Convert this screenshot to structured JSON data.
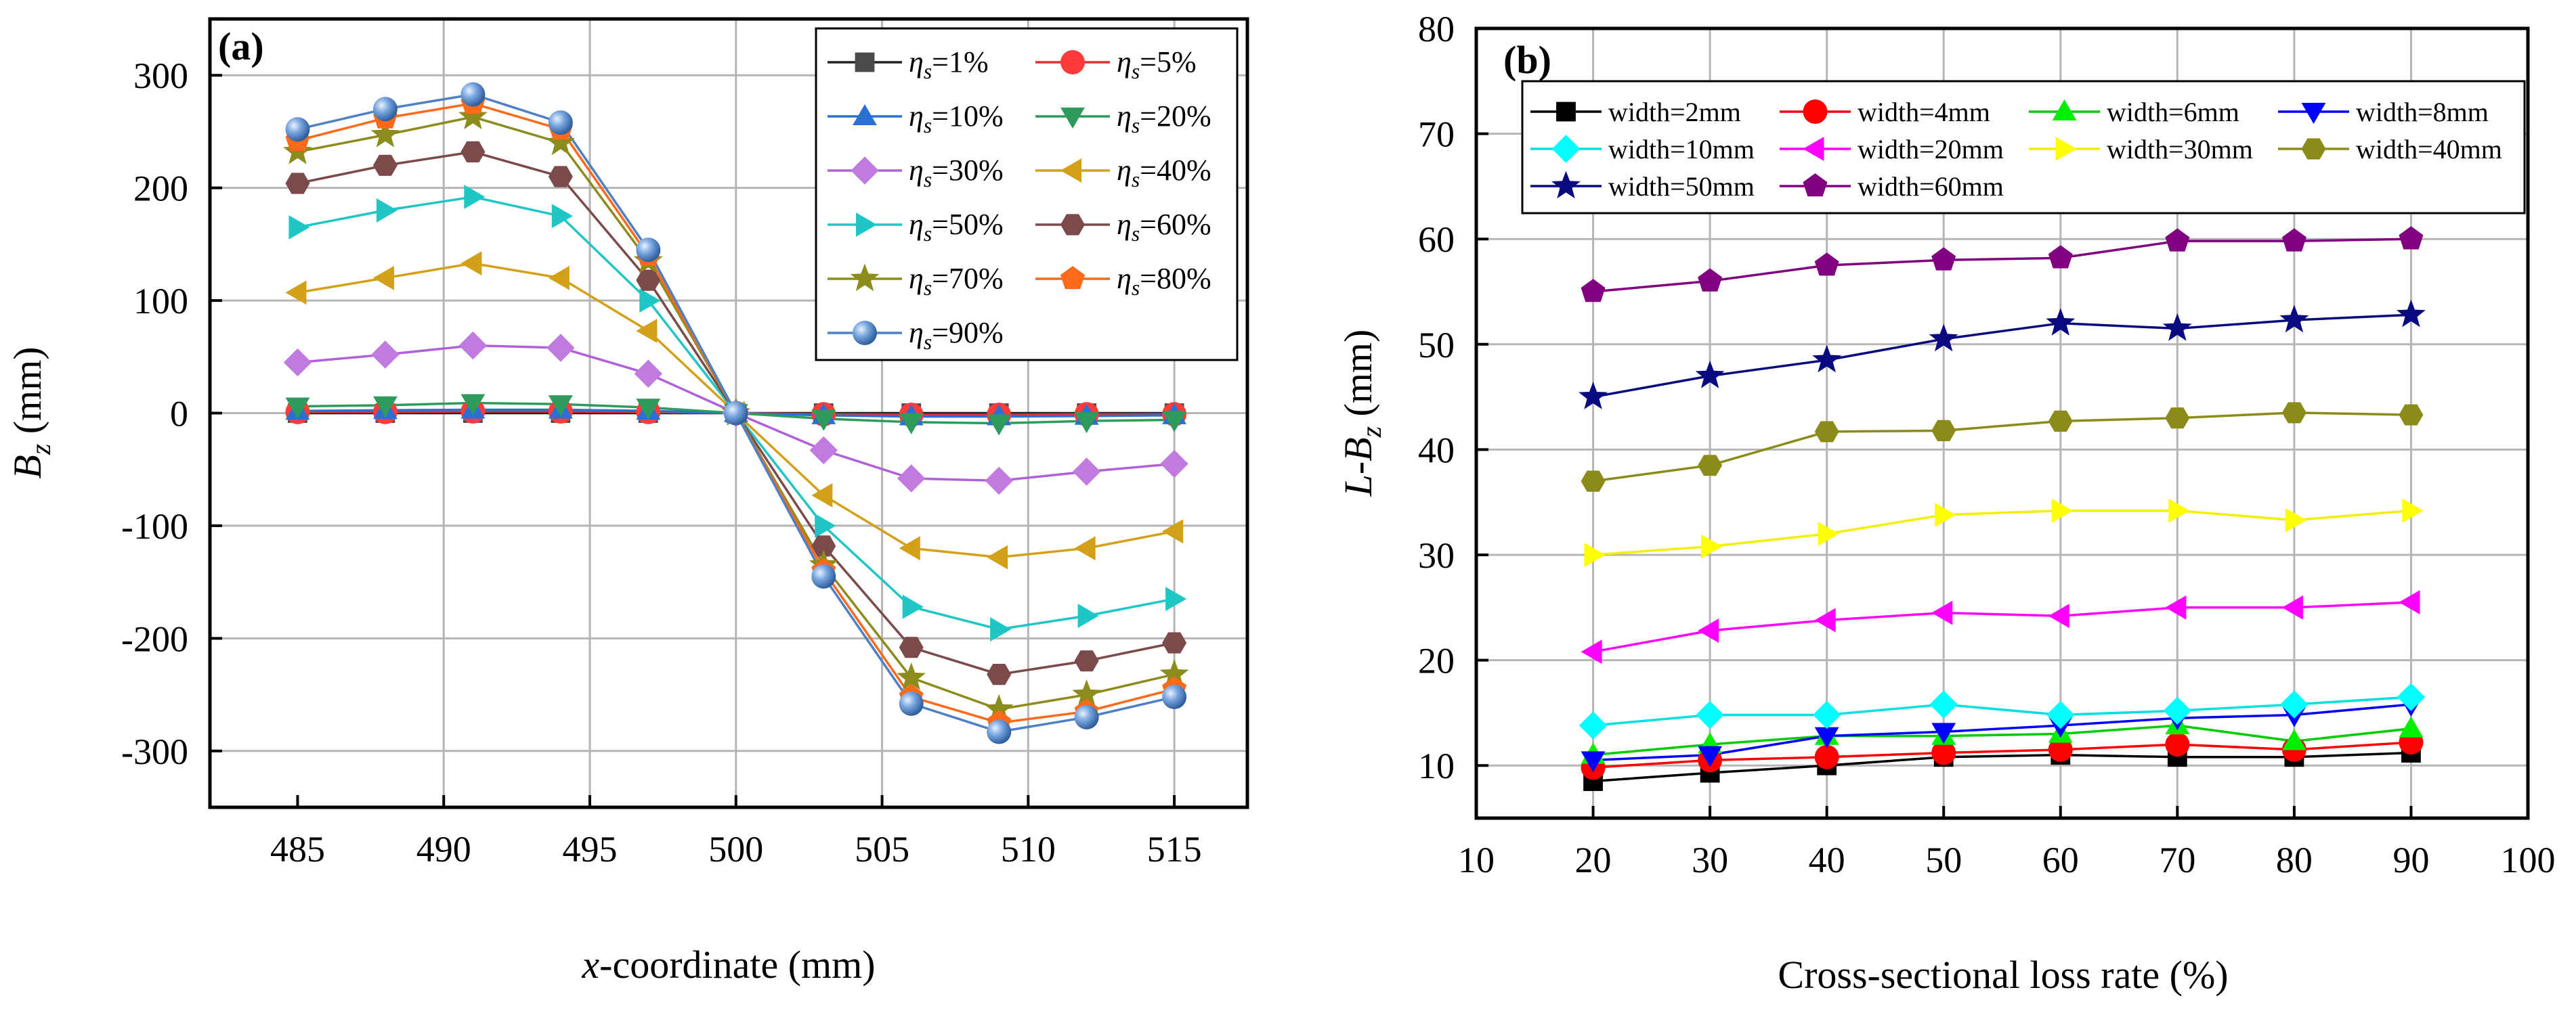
{
  "chart_data": [
    {
      "panel": "(a)",
      "type": "line",
      "xlabel_italic": "x",
      "xlabel_rest": "-coordinate (mm)",
      "ylabel_main": "B",
      "ylabel_sub": "z",
      "ylabel_unit": " (mm)",
      "xlim": [
        482,
        517.5
      ],
      "ylim": [
        -350,
        350
      ],
      "xticks": [
        485,
        490,
        495,
        500,
        505,
        510,
        515
      ],
      "yticks": [
        -300,
        -200,
        -100,
        0,
        100,
        200,
        300
      ],
      "x": [
        485,
        488,
        491,
        494,
        497,
        500,
        503,
        506,
        509,
        512,
        515
      ],
      "legend": {
        "position": "top-right",
        "columns": 2,
        "prefix_main": "η",
        "prefix_sub": "s"
      },
      "series": [
        {
          "name": "=1%",
          "marker": "square",
          "color": "#4a4a4a",
          "line": "#222222",
          "values": [
            0,
            0,
            0,
            0,
            0,
            0,
            0,
            0,
            0,
            0,
            0
          ]
        },
        {
          "name": "=5%",
          "marker": "circle",
          "color": "#ff3b3b",
          "line": "#e03030",
          "values": [
            1,
            1,
            1.5,
            1.5,
            1,
            0,
            -1,
            -1.5,
            -1.5,
            -1,
            -1
          ]
        },
        {
          "name": "=10%",
          "marker": "triangle-up",
          "color": "#2a6fd6",
          "line": "#2a6fd6",
          "values": [
            2,
            2.5,
            3,
            3,
            2,
            0,
            -2,
            -3,
            -3,
            -2.5,
            -2
          ]
        },
        {
          "name": "=20%",
          "marker": "triangle-down",
          "color": "#2e9a5c",
          "line": "#2e9a5c",
          "values": [
            6,
            7,
            9,
            8,
            5,
            0,
            -5,
            -8,
            -9,
            -7,
            -6
          ]
        },
        {
          "name": "=30%",
          "marker": "diamond",
          "color": "#c07ae0",
          "line": "#b060d8",
          "values": [
            45,
            52,
            60,
            58,
            35,
            0,
            -33,
            -58,
            -60,
            -52,
            -45
          ]
        },
        {
          "name": "=40%",
          "marker": "triangle-left",
          "color": "#d4a017",
          "line": "#d4a017",
          "values": [
            107,
            120,
            133,
            120,
            73,
            0,
            -73,
            -120,
            -128,
            -120,
            -105
          ]
        },
        {
          "name": "=50%",
          "marker": "triangle-right",
          "color": "#1fc6c6",
          "line": "#1fc6c6",
          "values": [
            165,
            180,
            192,
            175,
            100,
            0,
            -100,
            -172,
            -192,
            -180,
            -165
          ]
        },
        {
          "name": "=60%",
          "marker": "hexagon",
          "color": "#7b4a4a",
          "line": "#7b4a4a",
          "values": [
            204,
            220,
            232,
            210,
            118,
            0,
            -118,
            -208,
            -232,
            -220,
            -204
          ]
        },
        {
          "name": "=70%",
          "marker": "star",
          "color": "#8c8c1c",
          "line": "#8c8c1c",
          "values": [
            232,
            247,
            263,
            240,
            135,
            0,
            -135,
            -235,
            -263,
            -250,
            -232
          ]
        },
        {
          "name": "=80%",
          "marker": "pentagon",
          "color": "#ff6a1a",
          "line": "#ff6a1a",
          "values": [
            242,
            262,
            275,
            252,
            140,
            0,
            -140,
            -252,
            -275,
            -265,
            -245
          ]
        },
        {
          "name": "=90%",
          "marker": "sphere",
          "color": "#5a8fd0",
          "line": "#4f7fc4",
          "values": [
            252,
            270,
            283,
            258,
            145,
            0,
            -145,
            -258,
            -283,
            -270,
            -252
          ]
        }
      ]
    },
    {
      "panel": "(b)",
      "type": "line",
      "xlabel": "Cross-sectional loss rate (%)",
      "ylabel_pre": "L-B",
      "ylabel_sub": "z",
      "ylabel_unit": " (mm)",
      "xlim": [
        10,
        100
      ],
      "ylim": [
        5,
        80
      ],
      "xticks": [
        10,
        20,
        30,
        40,
        50,
        60,
        70,
        80,
        90,
        100
      ],
      "yticks": [
        10,
        20,
        30,
        40,
        50,
        60,
        70,
        80
      ],
      "x": [
        20,
        30,
        40,
        50,
        60,
        70,
        80,
        90
      ],
      "legend": {
        "position": "top",
        "columns": 4
      },
      "series": [
        {
          "name": "width=2mm",
          "marker": "square",
          "color": "#000000",
          "line": "#000000",
          "values": [
            8.5,
            9.3,
            10,
            10.8,
            11,
            10.8,
            10.8,
            11.2
          ]
        },
        {
          "name": "width=4mm",
          "marker": "circle",
          "color": "#ff0000",
          "line": "#ff0000",
          "values": [
            9.8,
            10.5,
            10.8,
            11.2,
            11.5,
            12,
            11.5,
            12.2
          ]
        },
        {
          "name": "width=6mm",
          "marker": "triangle-up",
          "color": "#00ee00",
          "line": "#00cc00",
          "values": [
            11,
            12,
            12.8,
            12.8,
            13,
            13.8,
            12.3,
            13.5
          ]
        },
        {
          "name": "width=8mm",
          "marker": "triangle-down",
          "color": "#0000ff",
          "line": "#0000ff",
          "values": [
            10.5,
            11,
            12.8,
            13.2,
            13.8,
            14.5,
            14.8,
            15.8
          ]
        },
        {
          "name": "width=10mm",
          "marker": "diamond",
          "color": "#00ffff",
          "line": "#00e0e0",
          "values": [
            13.8,
            14.8,
            14.8,
            15.8,
            14.8,
            15.2,
            15.8,
            16.5
          ]
        },
        {
          "name": "width=20mm",
          "marker": "triangle-left",
          "color": "#ff00ff",
          "line": "#ff00ff",
          "values": [
            20.8,
            22.8,
            23.8,
            24.5,
            24.2,
            25,
            25,
            25.5
          ]
        },
        {
          "name": "width=30mm",
          "marker": "triangle-right",
          "color": "#ffff00",
          "line": "#f0f000",
          "values": [
            30,
            30.8,
            32,
            33.8,
            34.2,
            34.2,
            33.3,
            34.2
          ]
        },
        {
          "name": "width=40mm",
          "marker": "hexagon",
          "color": "#8b8b1a",
          "line": "#8b8b1a",
          "values": [
            37,
            38.5,
            41.7,
            41.8,
            42.7,
            43,
            43.5,
            43.3
          ]
        },
        {
          "name": "width=50mm",
          "marker": "star",
          "color": "#0a0a80",
          "line": "#0a0a80",
          "values": [
            45,
            47,
            48.5,
            50.5,
            52,
            51.5,
            52.3,
            52.8
          ]
        },
        {
          "name": "width=60mm",
          "marker": "pentagon",
          "color": "#800080",
          "line": "#800080",
          "values": [
            55,
            56,
            57.5,
            58,
            58.2,
            59.8,
            59.8,
            60
          ]
        }
      ]
    }
  ]
}
